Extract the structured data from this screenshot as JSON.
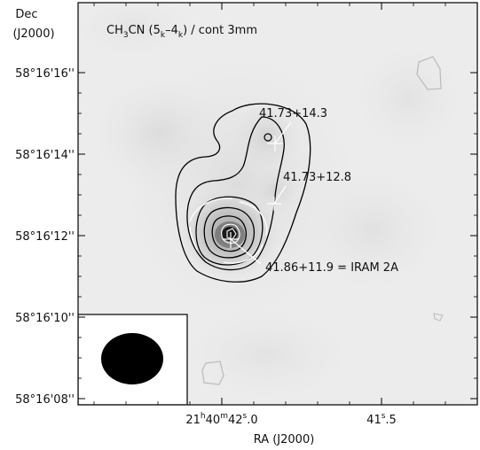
{
  "chart_data": {
    "type": "contour_map",
    "title_text": "CH3CN (5k–4k) / cont 3mm",
    "title_parts": {
      "pre": "CH",
      "sub3": "3",
      "mid": "CN (5",
      "subk1": "k",
      "dash": "–4",
      "subk2": "k",
      "post": ") / cont 3mm"
    },
    "y_axis": {
      "label_line1": "Dec",
      "label_line2": "(J2000)",
      "ticks": [
        "58°16'16''",
        "58°16'14''",
        "58°16'12''",
        "58°16'10''",
        "58°16'08''"
      ]
    },
    "x_axis": {
      "label": "RA (J2000)",
      "ticks": [
        {
          "h": "21",
          "m": "40",
          "s": "42",
          "frac": ".0",
          "sup_h": "h",
          "sup_m": "m",
          "sup_s": "s"
        },
        {
          "s": "41",
          "frac": ".5",
          "sup_s": "s"
        }
      ]
    },
    "sources": [
      {
        "label": "41.73+14.3"
      },
      {
        "label": "41.73+12.8"
      },
      {
        "label": "41.86+11.9 = IRAM 2A"
      }
    ],
    "beam": {
      "shape": "ellipse",
      "fill": "#000000"
    },
    "colors": {
      "background_grey": "#ebebeb",
      "contour": "#000000",
      "negative_contour": "#cfcfcf",
      "marker": "#ffffff"
    }
  }
}
